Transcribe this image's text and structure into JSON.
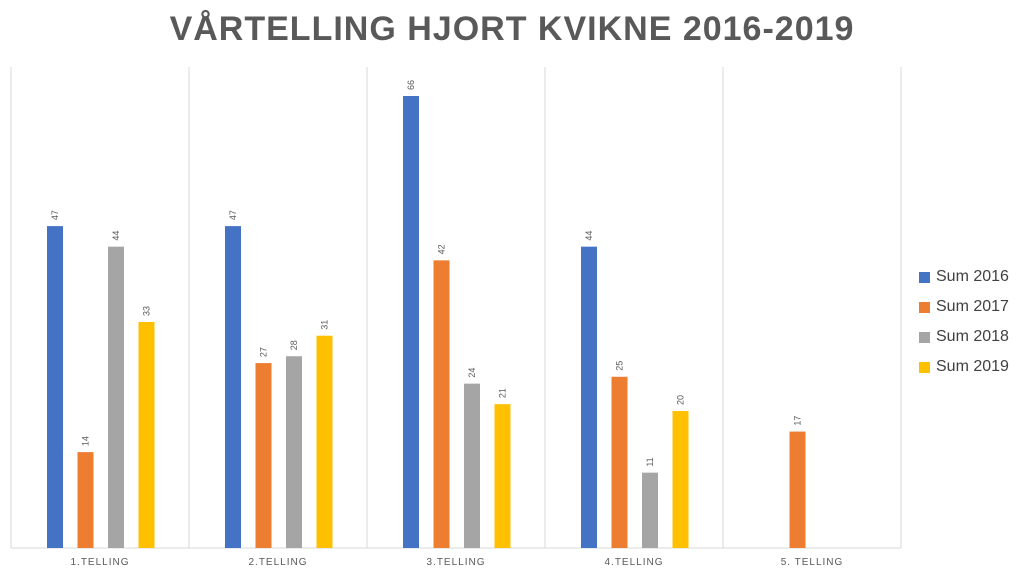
{
  "chart_data": {
    "type": "bar",
    "title": "VÅRTELLING HJORT KVIKNE 2016-2019",
    "xlabel": "",
    "ylabel": "",
    "ylim": [
      0,
      70
    ],
    "grid": "vertical separators between categories",
    "legend_position": "right",
    "categories": [
      "1.TELLING",
      "2.TELLING",
      "3.TELLING",
      "4.TELLING",
      "5. TELLING"
    ],
    "series": [
      {
        "name": "Sum 2016",
        "color": "#4472C4",
        "values": [
          47,
          47,
          66,
          44,
          null
        ]
      },
      {
        "name": "Sum 2017",
        "color": "#ED7D31",
        "values": [
          14,
          27,
          42,
          25,
          17
        ]
      },
      {
        "name": "Sum 2018",
        "color": "#A5A5A5",
        "values": [
          44,
          28,
          24,
          11,
          null
        ]
      },
      {
        "name": "Sum 2019",
        "color": "#FFC000",
        "values": [
          33,
          31,
          21,
          20,
          null
        ]
      }
    ]
  }
}
